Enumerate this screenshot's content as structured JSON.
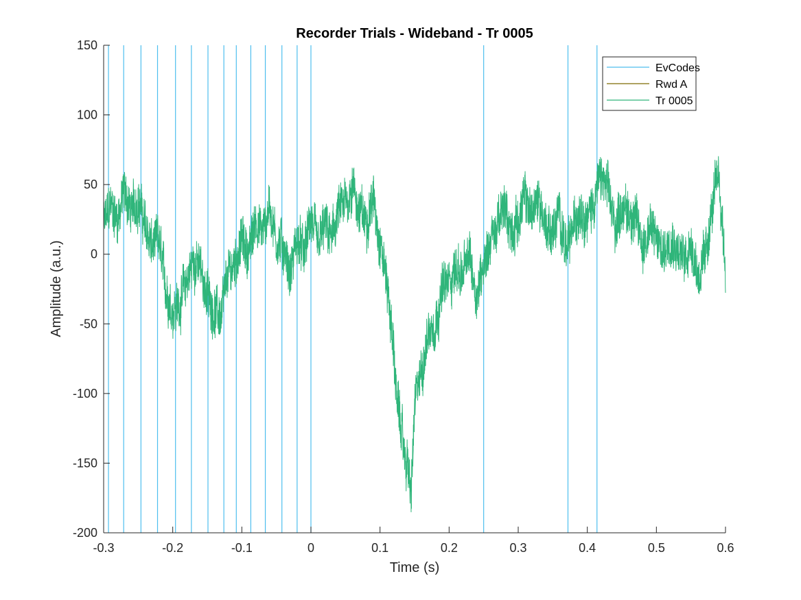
{
  "chart_data": {
    "type": "line",
    "title": "Recorder Trials - Wideband - Tr 0005",
    "xlabel": "Time (s)",
    "ylabel": "Amplitude (a.u.)",
    "xlim": [
      -0.3,
      0.6
    ],
    "ylim": [
      -200,
      150
    ],
    "x_ticks": [
      -0.3,
      -0.2,
      -0.1,
      0,
      0.1,
      0.2,
      0.3,
      0.4,
      0.5,
      0.6
    ],
    "x_tick_labels": [
      "-0.3",
      "-0.2",
      "-0.1",
      "0",
      "0.1",
      "0.2",
      "0.3",
      "0.4",
      "0.5",
      "0.6"
    ],
    "y_ticks": [
      -200,
      -150,
      -100,
      -50,
      0,
      50,
      100,
      150
    ],
    "y_tick_labels": [
      "-200",
      "-150",
      "-100",
      "-50",
      "0",
      "50",
      "100",
      "150"
    ],
    "grid": false,
    "legend_position": "top-right",
    "colors": {
      "evcodes": "#4DBEEE",
      "rwd": "#7E6B00",
      "trace": "#2FB57A",
      "axis": "#262626"
    },
    "series": [
      {
        "name": "EvCodes",
        "kind": "vertical-lines",
        "x": [
          -0.293,
          -0.271,
          -0.246,
          -0.222,
          -0.196,
          -0.173,
          -0.149,
          -0.126,
          -0.108,
          -0.087,
          -0.066,
          -0.042,
          -0.02,
          0.0,
          0.25,
          0.372,
          0.414
        ]
      },
      {
        "name": "Rwd A",
        "kind": "line",
        "x": [],
        "y": []
      },
      {
        "name": "Tr 0005",
        "kind": "line",
        "x": [
          -0.3,
          -0.29,
          -0.28,
          -0.27,
          -0.26,
          -0.25,
          -0.24,
          -0.23,
          -0.22,
          -0.21,
          -0.2,
          -0.19,
          -0.18,
          -0.17,
          -0.16,
          -0.15,
          -0.14,
          -0.13,
          -0.12,
          -0.11,
          -0.1,
          -0.09,
          -0.08,
          -0.07,
          -0.06,
          -0.05,
          -0.04,
          -0.03,
          -0.02,
          -0.01,
          0.0,
          0.01,
          0.02,
          0.03,
          0.04,
          0.05,
          0.06,
          0.07,
          0.08,
          0.09,
          0.1,
          0.11,
          0.115,
          0.12,
          0.125,
          0.13,
          0.135,
          0.14,
          0.145,
          0.15,
          0.155,
          0.16,
          0.17,
          0.18,
          0.19,
          0.2,
          0.21,
          0.22,
          0.23,
          0.24,
          0.25,
          0.26,
          0.27,
          0.28,
          0.29,
          0.3,
          0.31,
          0.32,
          0.33,
          0.34,
          0.35,
          0.36,
          0.37,
          0.38,
          0.39,
          0.4,
          0.41,
          0.42,
          0.43,
          0.44,
          0.45,
          0.46,
          0.47,
          0.48,
          0.49,
          0.5,
          0.51,
          0.52,
          0.53,
          0.54,
          0.55,
          0.56,
          0.57,
          0.58,
          0.59,
          0.6
        ],
        "y": [
          20,
          35,
          25,
          45,
          30,
          40,
          20,
          5,
          10,
          -25,
          -40,
          -35,
          -20,
          -5,
          -10,
          -30,
          -40,
          -45,
          -15,
          -5,
          10,
          0,
          25,
          15,
          35,
          10,
          5,
          -15,
          10,
          0,
          25,
          5,
          20,
          10,
          30,
          35,
          50,
          30,
          25,
          40,
          10,
          -20,
          -45,
          -70,
          -110,
          -120,
          -145,
          -150,
          -175,
          -110,
          -95,
          -85,
          -55,
          -50,
          -25,
          -20,
          -10,
          -15,
          0,
          -30,
          -5,
          10,
          20,
          35,
          15,
          25,
          40,
          30,
          40,
          20,
          15,
          30,
          0,
          20,
          35,
          25,
          40,
          55,
          45,
          20,
          35,
          30,
          25,
          5,
          20,
          10,
          0,
          15,
          5,
          -5,
          10,
          -15,
          -5,
          30,
          60,
          -10
        ]
      }
    ]
  }
}
